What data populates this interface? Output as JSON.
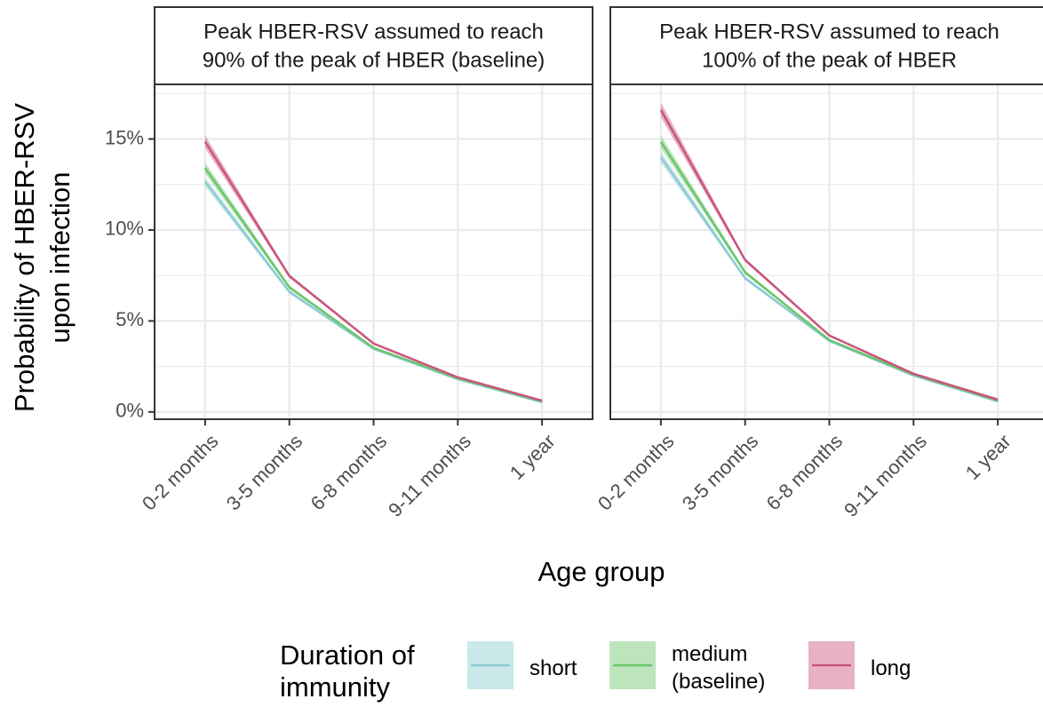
{
  "chart_data": [
    {
      "type": "line",
      "strip": [
        "Peak HBER-RSV assumed to reach",
        "90% of the peak of HBER (baseline)"
      ],
      "ylabel": [
        "Probability of HBER-RSV",
        "upon infection"
      ],
      "xlabel": "Age group",
      "legend_title": [
        "Duration of",
        "immunity"
      ],
      "categories": [
        "0-2 months",
        "3-5 months",
        "6-8 months",
        "9-11 months",
        "1 year"
      ],
      "ylim": [
        -0.4,
        18
      ],
      "yticks": [
        {
          "value": 0,
          "label": "0%"
        },
        {
          "value": 5,
          "label": "5%"
        },
        {
          "value": 10,
          "label": "10%"
        },
        {
          "value": 15,
          "label": "15%"
        }
      ],
      "minor_yticks": [
        2.5,
        7.5,
        12.5,
        17.5
      ],
      "grid": true,
      "series": [
        {
          "name": "short",
          "color": "#8ccbd3",
          "values": [
            12.65,
            6.6,
            3.47,
            1.8,
            0.54
          ],
          "lower": [
            12.4,
            6.5,
            3.42,
            1.77,
            0.52
          ],
          "upper": [
            12.9,
            6.7,
            3.52,
            1.83,
            0.56
          ]
        },
        {
          "name": "medium (baseline)",
          "color": "#6cc56a",
          "values": [
            13.4,
            6.85,
            3.52,
            1.85,
            0.58
          ],
          "lower": [
            13.1,
            6.75,
            3.47,
            1.82,
            0.56
          ],
          "upper": [
            13.7,
            6.95,
            3.57,
            1.88,
            0.6
          ]
        },
        {
          "name": "long",
          "color": "#c9557c",
          "values": [
            14.85,
            7.47,
            3.76,
            1.9,
            0.62
          ],
          "lower": [
            14.5,
            7.37,
            3.7,
            1.87,
            0.6
          ],
          "upper": [
            15.2,
            7.57,
            3.82,
            1.93,
            0.64
          ]
        }
      ]
    },
    {
      "type": "line",
      "strip": [
        "Peak HBER-RSV assumed to reach",
        "100% of the peak of HBER"
      ],
      "categories": [
        "0-2 months",
        "3-5 months",
        "6-8 months",
        "9-11 months",
        "1 year"
      ],
      "ylim": [
        -0.4,
        18
      ],
      "minor_yticks": [
        2.5,
        7.5,
        12.5,
        17.5
      ],
      "major_yticks": [
        0,
        5,
        10,
        15
      ],
      "grid": true,
      "series": [
        {
          "name": "short",
          "color": "#8ccbd3",
          "values": [
            14.0,
            7.35,
            3.9,
            2.0,
            0.58
          ],
          "lower": [
            13.7,
            7.25,
            3.85,
            1.97,
            0.56
          ],
          "upper": [
            14.3,
            7.45,
            3.95,
            2.03,
            0.6
          ]
        },
        {
          "name": "medium (baseline)",
          "color": "#6cc56a",
          "values": [
            14.85,
            7.67,
            3.95,
            2.05,
            0.62
          ],
          "lower": [
            14.5,
            7.57,
            3.9,
            2.02,
            0.6
          ],
          "upper": [
            15.2,
            7.77,
            4.0,
            2.08,
            0.64
          ]
        },
        {
          "name": "long",
          "color": "#c9557c",
          "values": [
            16.6,
            8.35,
            4.2,
            2.1,
            0.68
          ],
          "lower": [
            16.2,
            8.25,
            4.14,
            2.07,
            0.66
          ],
          "upper": [
            17.0,
            8.45,
            4.26,
            2.13,
            0.7
          ]
        }
      ]
    }
  ]
}
